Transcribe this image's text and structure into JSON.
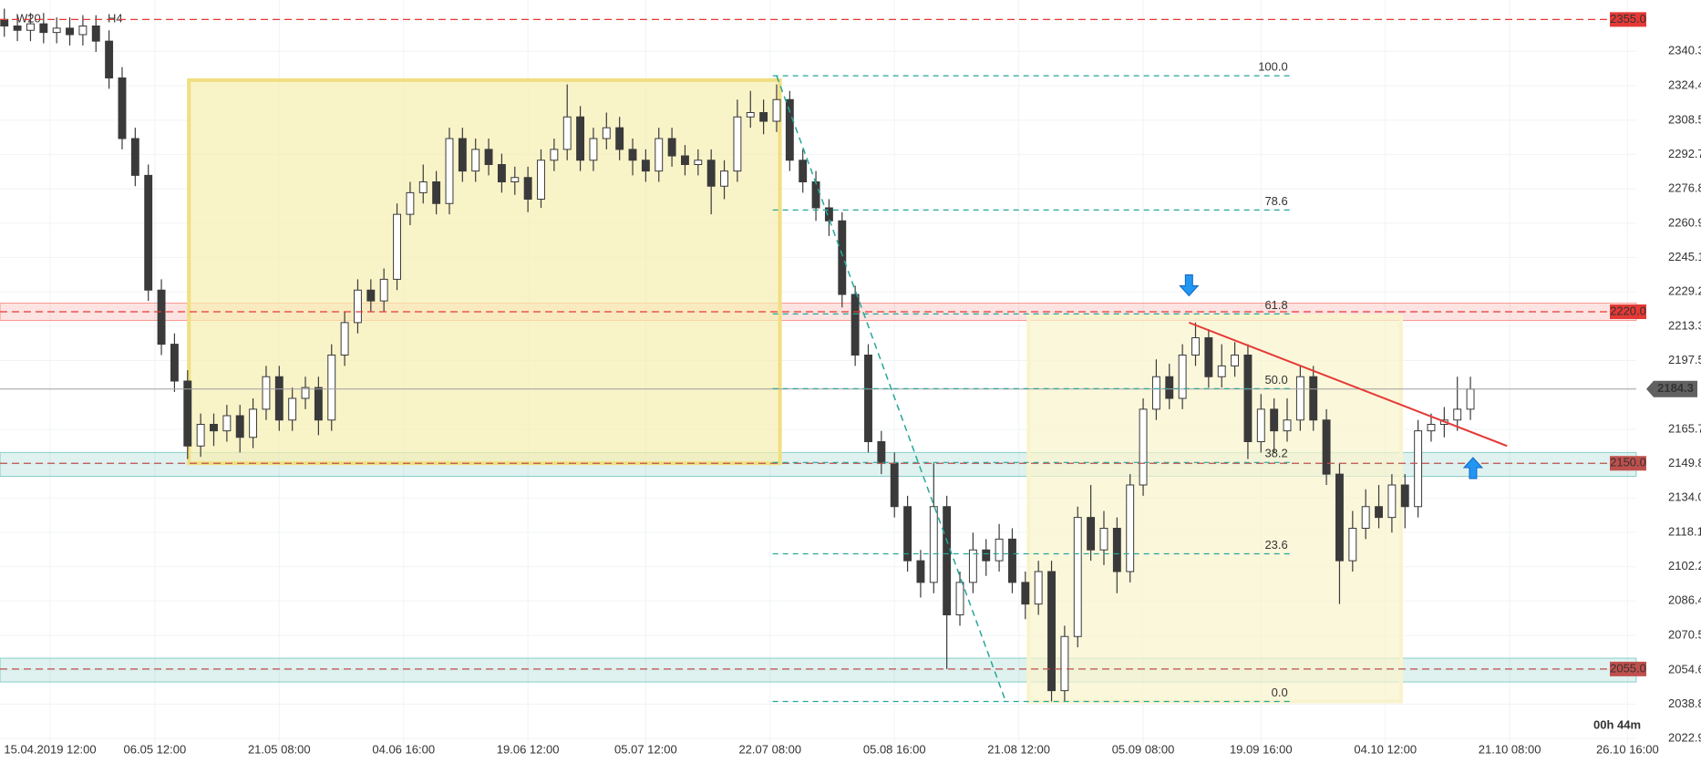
{
  "chart_data": {
    "type": "candlestick",
    "symbol": "W20",
    "interval": "H4",
    "countdown": "00h 44m",
    "xlim": [
      -0.33,
      124.67
    ],
    "ylim": [
      2020,
      2364
    ],
    "grid": true,
    "up_color": "#ffffff",
    "down_color": "#3a3a3a",
    "yticks": [
      2340.3,
      2324.4,
      2308.5,
      2292.7,
      2276.8,
      2260.9,
      2245.1,
      2229.2,
      2213.3,
      2197.5,
      2165.7,
      2149.8,
      {
        "value": 2134,
        "label": "2134.0"
      },
      2118.1,
      2102.2,
      2086.4,
      2070.5,
      2054.6,
      2038.8,
      2022.9
    ],
    "xticks": [
      {
        "value": 3.5,
        "label": "15.04.2019  12:00"
      },
      {
        "value": 11.5,
        "label": "06.05  12:00"
      },
      {
        "value": 21,
        "label": "21.05  08:00"
      },
      {
        "value": 30.5,
        "label": "04.06  16:00"
      },
      {
        "value": 40,
        "label": "19.06  12:00"
      },
      {
        "value": 49,
        "label": "05.07  12:00"
      },
      {
        "value": 58.5,
        "label": "22.07  08:00"
      },
      {
        "value": 68,
        "label": "05.08  16:00"
      },
      {
        "value": 77.5,
        "label": "21.08  12:00"
      },
      {
        "value": 87,
        "label": "05.09  08:00"
      },
      {
        "value": 96,
        "label": "19.09  16:00"
      },
      {
        "value": 105.5,
        "label": "04.10  12:00"
      },
      {
        "value": 115,
        "label": "21.10  08:00"
      },
      {
        "value": 124,
        "label": "26.10  16:00"
      }
    ],
    "open": [
      2355,
      2352,
      2350,
      2353,
      2349,
      2351,
      2348,
      2352,
      2345,
      2328,
      2300,
      2283,
      2230,
      2205,
      2188,
      2158,
      2168,
      2165,
      2172,
      2162,
      2175,
      2190,
      2170,
      2180,
      2185,
      2170,
      2200,
      2215,
      2230,
      2225,
      2235,
      2265,
      2275,
      2280,
      2270,
      2300,
      2285,
      2295,
      2288,
      2280,
      2282,
      2272,
      2290,
      2295,
      2310,
      2290,
      2300,
      2305,
      2295,
      2290,
      2285,
      2300,
      2292,
      2288,
      2290,
      2278,
      2285,
      2310,
      2312,
      2308,
      2318,
      2290,
      2280,
      2268,
      2262,
      2228,
      2200,
      2160,
      2150,
      2130,
      2105,
      2095,
      2130,
      2080,
      2095,
      2110,
      2105,
      2115,
      2095,
      2085,
      2100,
      2045,
      2070,
      2125,
      2110,
      2120,
      2100,
      2140,
      2175,
      2190,
      2180,
      2200,
      2208,
      2190,
      2195,
      2200,
      2160,
      2175,
      2165,
      2170,
      2190,
      2170,
      2145,
      2105,
      2120,
      2130,
      2125,
      2140,
      2130,
      2165,
      2168,
      2170,
      2175
    ],
    "high": [
      2360,
      2357,
      2358,
      2358,
      2356,
      2356,
      2357,
      2357,
      2350,
      2333,
      2305,
      2288,
      2235,
      2210,
      2193,
      2173,
      2173,
      2177,
      2177,
      2180,
      2195,
      2195,
      2185,
      2190,
      2190,
      2205,
      2220,
      2235,
      2235,
      2240,
      2270,
      2280,
      2288,
      2285,
      2305,
      2305,
      2300,
      2300,
      2293,
      2287,
      2287,
      2295,
      2300,
      2325,
      2315,
      2305,
      2312,
      2310,
      2300,
      2295,
      2305,
      2305,
      2297,
      2295,
      2295,
      2290,
      2318,
      2322,
      2318,
      2325,
      2322,
      2295,
      2285,
      2272,
      2266,
      2232,
      2205,
      2165,
      2155,
      2135,
      2110,
      2150,
      2135,
      2100,
      2118,
      2115,
      2122,
      2120,
      2100,
      2105,
      2105,
      2075,
      2130,
      2140,
      2128,
      2125,
      2145,
      2180,
      2198,
      2196,
      2205,
      2215,
      2212,
      2205,
      2206,
      2205,
      2182,
      2180,
      2180,
      2195,
      2195,
      2175,
      2150,
      2128,
      2138,
      2140,
      2145,
      2145,
      2170,
      2173,
      2176,
      2190,
      2190
    ],
    "low": [
      2347,
      2345,
      2345,
      2344,
      2344,
      2343,
      2343,
      2340,
      2323,
      2295,
      2278,
      2225,
      2200,
      2183,
      2152,
      2153,
      2158,
      2160,
      2155,
      2157,
      2170,
      2165,
      2165,
      2175,
      2163,
      2165,
      2195,
      2210,
      2220,
      2220,
      2230,
      2260,
      2270,
      2265,
      2265,
      2280,
      2280,
      2283,
      2275,
      2274,
      2266,
      2268,
      2285,
      2290,
      2285,
      2285,
      2295,
      2290,
      2283,
      2280,
      2280,
      2287,
      2283,
      2283,
      2265,
      2272,
      2280,
      2305,
      2302,
      2303,
      2285,
      2275,
      2262,
      2255,
      2222,
      2195,
      2155,
      2145,
      2125,
      2100,
      2088,
      2090,
      2055,
      2075,
      2090,
      2098,
      2100,
      2090,
      2078,
      2080,
      2040,
      2040,
      2065,
      2105,
      2103,
      2090,
      2095,
      2135,
      2170,
      2175,
      2175,
      2195,
      2185,
      2185,
      2190,
      2152,
      2155,
      2155,
      2160,
      2165,
      2165,
      2140,
      2085,
      2100,
      2115,
      2120,
      2118,
      2120,
      2125,
      2160,
      2162,
      2165,
      2170
    ],
    "close": [
      2352,
      2350,
      2353,
      2349,
      2351,
      2348,
      2352,
      2345,
      2328,
      2300,
      2283,
      2230,
      2205,
      2188,
      2158,
      2168,
      2165,
      2172,
      2162,
      2175,
      2190,
      2170,
      2180,
      2185,
      2170,
      2200,
      2215,
      2230,
      2225,
      2235,
      2265,
      2275,
      2280,
      2270,
      2300,
      2285,
      2295,
      2288,
      2280,
      2282,
      2272,
      2290,
      2295,
      2310,
      2290,
      2300,
      2305,
      2295,
      2290,
      2285,
      2300,
      2292,
      2288,
      2290,
      2278,
      2285,
      2310,
      2312,
      2308,
      2318,
      2290,
      2280,
      2268,
      2262,
      2228,
      2200,
      2160,
      2150,
      2130,
      2105,
      2095,
      2130,
      2080,
      2095,
      2110,
      2105,
      2115,
      2095,
      2085,
      2100,
      2045,
      2070,
      2125,
      2110,
      2120,
      2100,
      2140,
      2175,
      2190,
      2180,
      2200,
      2208,
      2190,
      2195,
      2200,
      2160,
      2175,
      2165,
      2170,
      2190,
      2170,
      2145,
      2105,
      2120,
      2130,
      2125,
      2140,
      2130,
      2165,
      2168,
      2170,
      2175,
      2184.3
    ],
    "last_price": 2184.3,
    "zones": [
      {
        "low": 2216,
        "high": 2224,
        "color": "#f44336"
      },
      {
        "low": 2144,
        "high": 2155,
        "color": "#26a69a"
      },
      {
        "low": 2049,
        "high": 2060,
        "color": "#26a69a"
      }
    ],
    "levels": [
      {
        "value": 2355,
        "label": "2355.0",
        "color": "#e53935"
      },
      {
        "value": 2220,
        "label": "2220.0",
        "color": "#e53935"
      },
      {
        "value": 2150,
        "label": "2150.0",
        "color": "#c0504d"
      },
      {
        "value": 2055,
        "label": "2055.0",
        "color": "#c0504d"
      }
    ],
    "boxes": [
      {
        "x": [
          14.1,
          59.25
        ],
        "y": [
          2150,
          2327
        ],
        "fill": "#f7eeb0",
        "stroke": "#f0df80"
      },
      {
        "x": [
          78.25,
          106.7
        ],
        "y": [
          2040,
          2218
        ],
        "fill": "#f9f3cc",
        "stroke": "#f9f3cc"
      }
    ],
    "fib": {
      "x": [
        58.7,
        98.4
      ],
      "color": "#26a69a",
      "levels": [
        {
          "label": "100.0",
          "value": 2329
        },
        {
          "label": "78.6",
          "value": 2267
        },
        {
          "label": "61.8",
          "value": 2219
        },
        {
          "label": "50.0",
          "value": 2184.5
        },
        {
          "label": "38.2",
          "value": 2150.4
        },
        {
          "label": "23.6",
          "value": 2108.2
        },
        {
          "label": "0.0",
          "value": 2040
        }
      ]
    },
    "trendlines": [
      {
        "x": [
          59,
          76.5
        ],
        "y": [
          2329,
          2040
        ],
        "color": "#26a69a",
        "dashed": true
      },
      {
        "x": [
          90.5,
          114.8
        ],
        "y": [
          2215,
          2158
        ],
        "color": "#e53935",
        "dashed": false
      }
    ],
    "signals": [
      {
        "x": 90.5,
        "y": 2232,
        "direction": "down",
        "color": "#2196f3"
      },
      {
        "x": 112.2,
        "y": 2148,
        "direction": "up",
        "color": "#2196f3"
      }
    ]
  }
}
